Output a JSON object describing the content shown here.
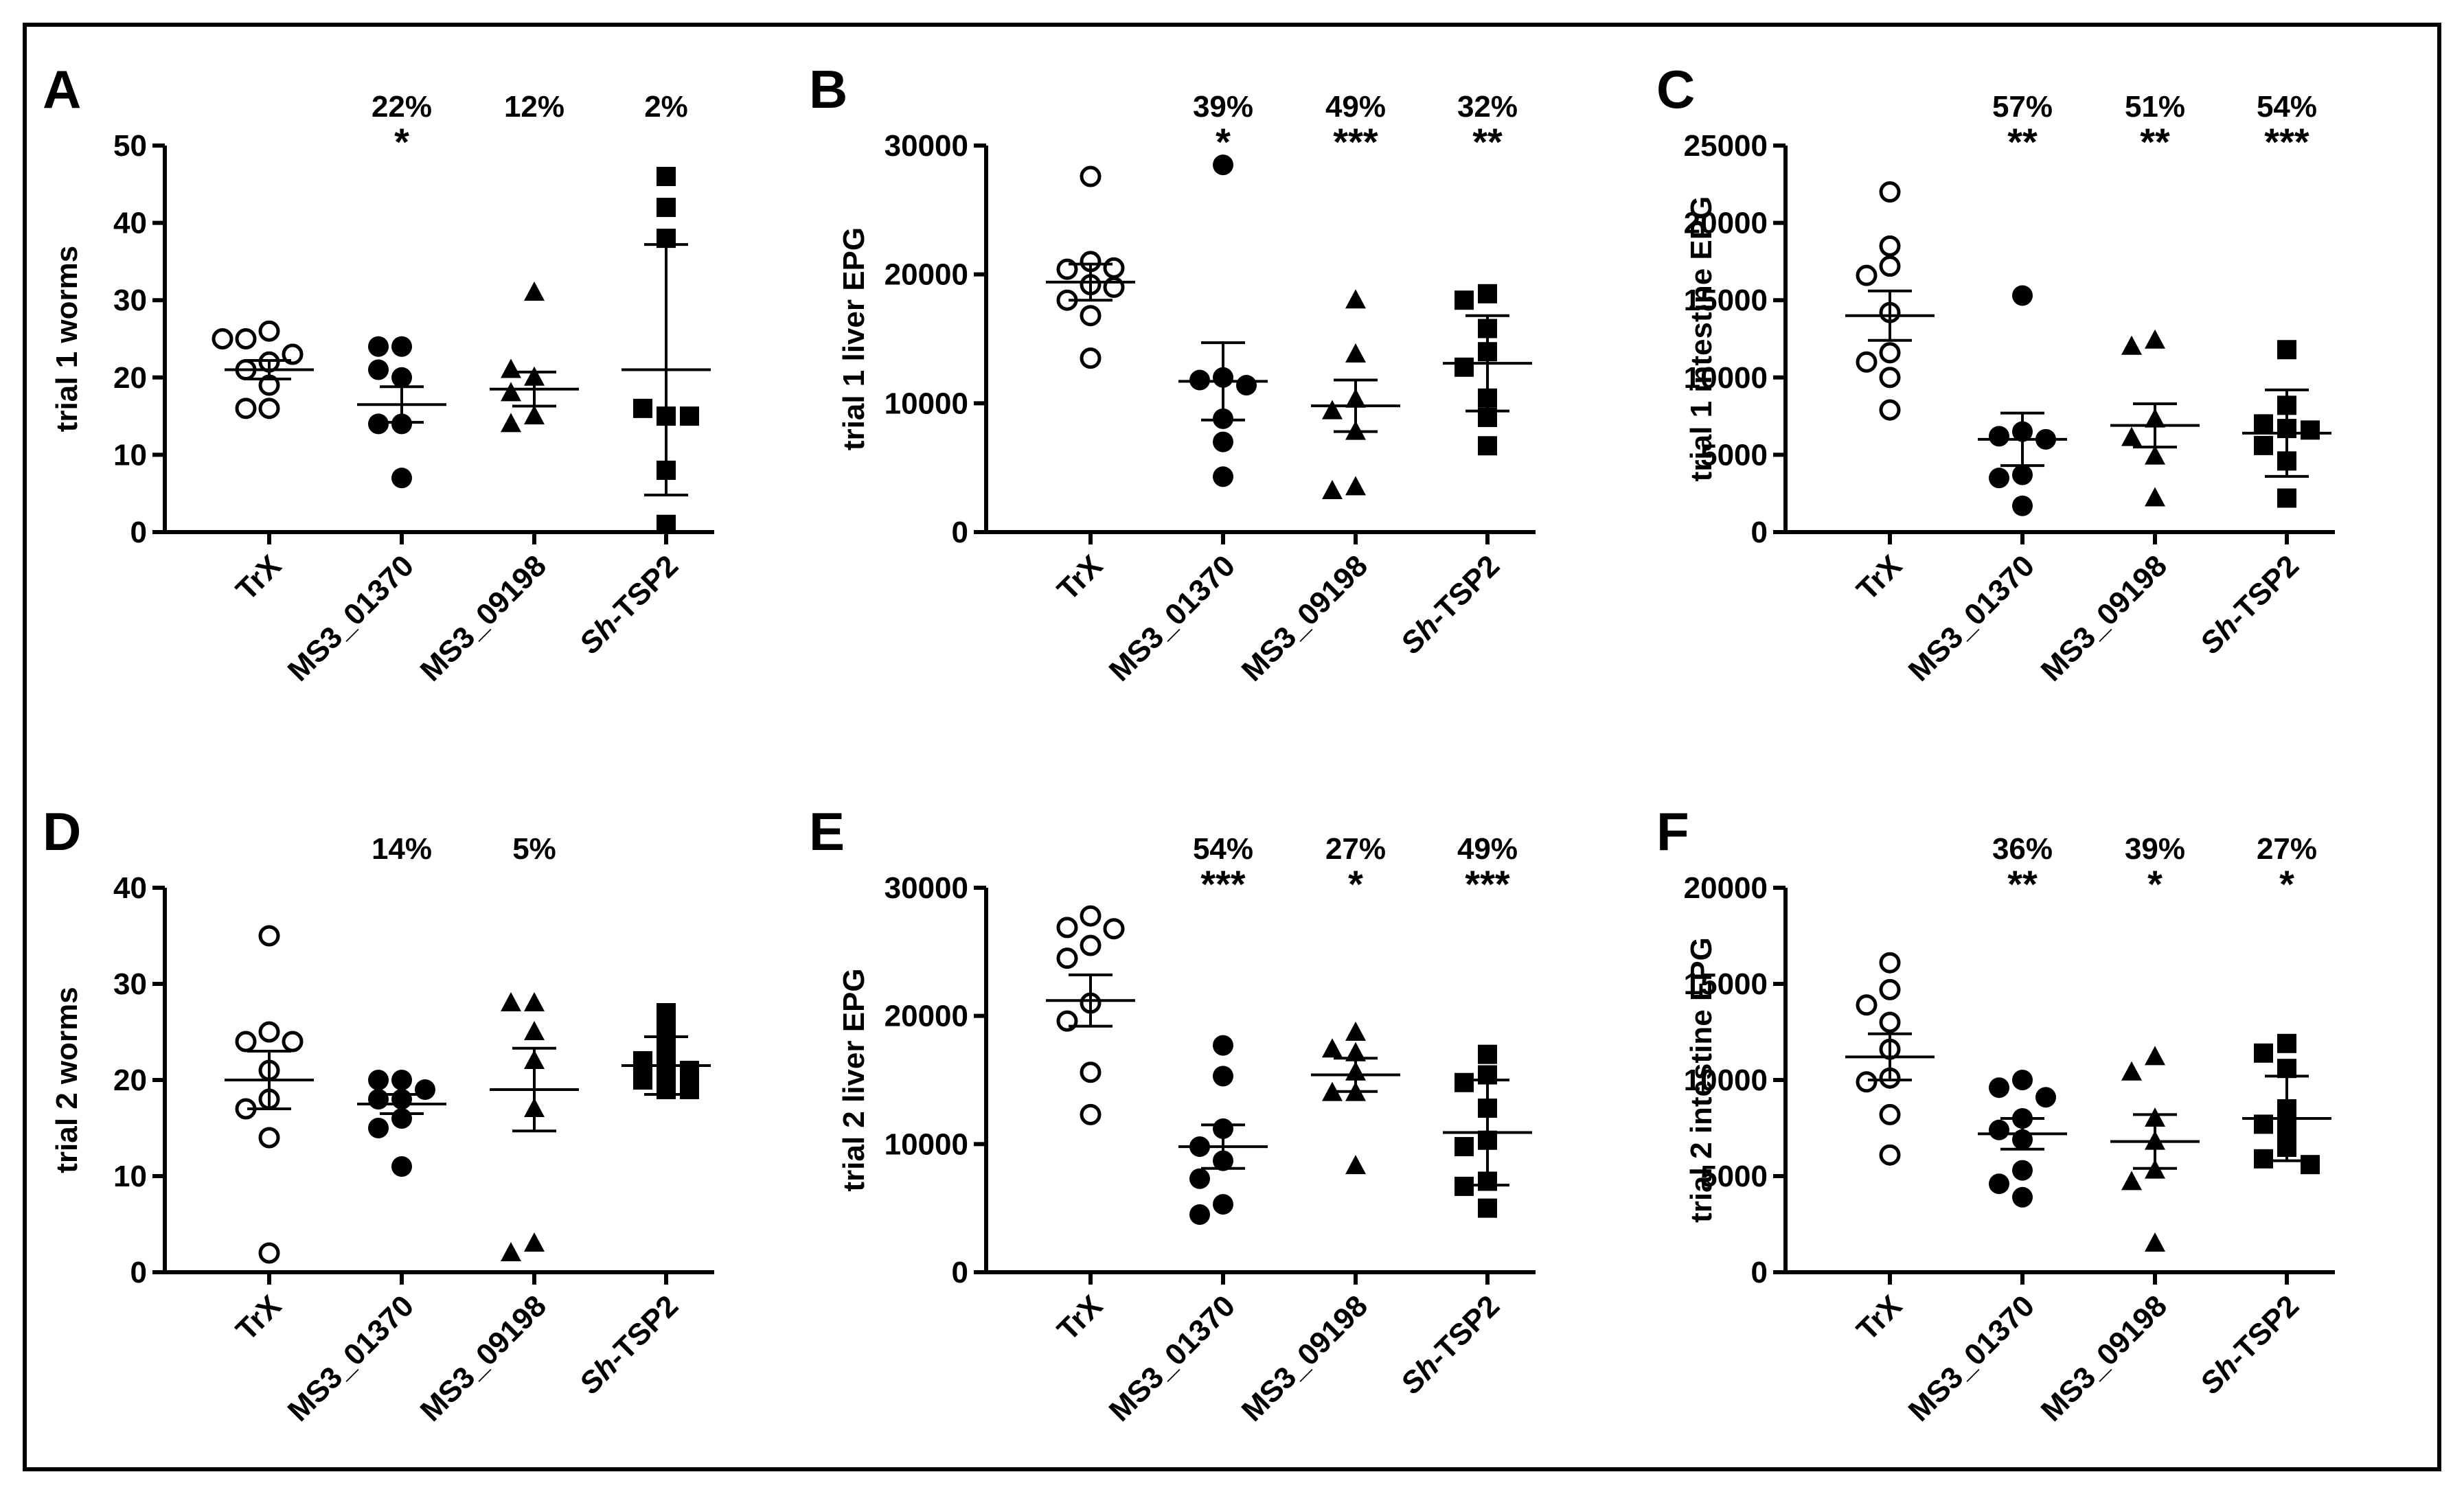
{
  "figure": {
    "categories": [
      {
        "key": "trx",
        "parts": [
          {
            "text": "TrX",
            "italic": false
          }
        ],
        "marker": "circle-open"
      },
      {
        "key": "ms3_01370",
        "parts": [
          {
            "text": "MS3_01370",
            "italic": false
          }
        ],
        "marker": "circle-filled"
      },
      {
        "key": "ms3_09198",
        "parts": [
          {
            "text": "MS3_09198",
            "italic": false
          }
        ],
        "marker": "triangle-filled"
      },
      {
        "key": "sh_tsp2",
        "parts": [
          {
            "text": "Sh",
            "italic": true
          },
          {
            "text": "-TSP2",
            "italic": false
          }
        ],
        "marker": "square-filled"
      }
    ]
  },
  "chart_data": [
    {
      "panel": "A",
      "type": "scatter",
      "ylabel": "trial 1 worms",
      "ylim": [
        0,
        50
      ],
      "yticks": [
        0,
        10,
        20,
        30,
        40,
        50
      ],
      "groups": [
        {
          "values": [
            26,
            22,
            25,
            23,
            25,
            21,
            19,
            16,
            16
          ],
          "mean": 21,
          "sem": 1.2,
          "pct": "",
          "sig": ""
        },
        {
          "values": [
            24,
            24,
            20,
            21,
            14,
            14,
            7
          ],
          "mean": 16.5,
          "sem": 2.3,
          "pct": "22%",
          "sig": "*"
        },
        {
          "values": [
            31,
            20,
            21,
            18,
            15,
            14
          ],
          "mean": 18.5,
          "sem": 2.2,
          "pct": "12%",
          "sig": ""
        },
        {
          "values": [
            46,
            42,
            38,
            15,
            16,
            15,
            8,
            1
          ],
          "mean": 21,
          "sem": 16.2,
          "pct": "2%",
          "sig": ""
        }
      ]
    },
    {
      "panel": "B",
      "type": "scatter",
      "ylabel": "trial 1 liver EPG",
      "ylim": [
        0,
        30000
      ],
      "yticks": [
        0,
        10000,
        20000,
        30000
      ],
      "groups": [
        {
          "values": [
            27600,
            21000,
            20400,
            20500,
            19200,
            19000,
            18000,
            16800,
            13500
          ],
          "mean": 19400,
          "sem": 1400,
          "pct": "",
          "sig": ""
        },
        {
          "values": [
            28500,
            12000,
            11800,
            11400,
            8800,
            7000,
            4300
          ],
          "mean": 11700,
          "sem": 3000,
          "pct": "39%",
          "sig": "*"
        },
        {
          "values": [
            18000,
            13800,
            10300,
            9400,
            7800,
            3500,
            3200
          ],
          "mean": 9800,
          "sem": 2000,
          "pct": "49%",
          "sig": "***"
        },
        {
          "values": [
            18500,
            18000,
            15800,
            14000,
            12800,
            10400,
            8900,
            6700
          ],
          "mean": 13100,
          "sem": 3700,
          "pct": "32%",
          "sig": "**"
        }
      ]
    },
    {
      "panel": "C",
      "type": "scatter",
      "ylabel": "trial 1 intestine EPG",
      "ylim": [
        0,
        25000
      ],
      "yticks": [
        0,
        5000,
        10000,
        15000,
        20000,
        25000
      ],
      "groups": [
        {
          "values": [
            22000,
            18500,
            17200,
            16600,
            14200,
            11600,
            11000,
            10000,
            7900
          ],
          "mean": 14000,
          "sem": 1600,
          "pct": "",
          "sig": ""
        },
        {
          "values": [
            15300,
            6500,
            6200,
            6000,
            3700,
            3500,
            1700
          ],
          "mean": 6000,
          "sem": 1700,
          "pct": "57%",
          "sig": "**"
        },
        {
          "values": [
            12400,
            12000,
            7300,
            6100,
            4900,
            2200
          ],
          "mean": 6900,
          "sem": 1400,
          "pct": "51%",
          "sig": "**"
        },
        {
          "values": [
            11800,
            8200,
            7000,
            6700,
            6600,
            5600,
            4600,
            2200
          ],
          "mean": 6400,
          "sem": 2800,
          "pct": "54%",
          "sig": "***"
        }
      ]
    },
    {
      "panel": "D",
      "type": "scatter",
      "ylabel": "trial 2 worms",
      "ylim": [
        0,
        40
      ],
      "yticks": [
        0,
        10,
        20,
        30,
        40
      ],
      "groups": [
        {
          "values": [
            35,
            25,
            24,
            24,
            21,
            18,
            17,
            14,
            2
          ],
          "mean": 20,
          "sem": 3,
          "pct": "",
          "sig": ""
        },
        {
          "values": [
            20,
            20,
            19,
            18,
            18,
            16,
            15,
            11
          ],
          "mean": 17.5,
          "sem": 1,
          "pct": "14%",
          "sig": ""
        },
        {
          "values": [
            28,
            28,
            25,
            22,
            17,
            3,
            2
          ],
          "mean": 19,
          "sem": 4.3,
          "pct": "5%",
          "sig": ""
        },
        {
          "values": [
            27,
            25,
            23,
            22,
            21,
            21,
            20,
            19,
            19
          ],
          "mean": 21.5,
          "sem": 3,
          "pct": "",
          "sig": ""
        }
      ]
    },
    {
      "panel": "E",
      "type": "scatter",
      "ylabel": "trial 2 liver EPG",
      "ylim": [
        0,
        30000
      ],
      "yticks": [
        0,
        10000,
        20000,
        30000
      ],
      "groups": [
        {
          "values": [
            27800,
            26900,
            26800,
            25500,
            24500,
            21000,
            19600,
            15600,
            12300
          ],
          "mean": 21200,
          "sem": 2000,
          "pct": "",
          "sig": ""
        },
        {
          "values": [
            17700,
            15300,
            11200,
            9800,
            8700,
            7300,
            5300,
            4500
          ],
          "mean": 9800,
          "sem": 1700,
          "pct": "54%",
          "sig": "***"
        },
        {
          "values": [
            18700,
            17400,
            17100,
            15600,
            14000,
            14000,
            8300
          ],
          "mean": 15400,
          "sem": 1300,
          "pct": "27%",
          "sig": "*"
        },
        {
          "values": [
            17000,
            15400,
            14800,
            12800,
            10300,
            9800,
            7100,
            6700,
            5000
          ],
          "mean": 10900,
          "sem": 4100,
          "pct": "49%",
          "sig": "***"
        }
      ]
    },
    {
      "panel": "F",
      "type": "scatter",
      "ylabel": "trial 2 intestine EPG",
      "ylim": [
        0,
        20000
      ],
      "yticks": [
        0,
        5000,
        10000,
        15000,
        20000
      ],
      "groups": [
        {
          "values": [
            16100,
            14700,
            13900,
            13000,
            11600,
            10100,
            9900,
            8200,
            6100
          ],
          "mean": 11200,
          "sem": 1200,
          "pct": "",
          "sig": ""
        },
        {
          "values": [
            10000,
            9600,
            9100,
            8000,
            7400,
            6900,
            5300,
            4600,
            3900
          ],
          "mean": 7200,
          "sem": 800,
          "pct": "36%",
          "sig": "**"
        },
        {
          "values": [
            11200,
            10400,
            8000,
            6800,
            5300,
            4700,
            1500
          ],
          "mean": 6800,
          "sem": 1400,
          "pct": "39%",
          "sig": "*"
        },
        {
          "values": [
            11900,
            11400,
            10600,
            8500,
            7700,
            7500,
            6500,
            5900,
            5600
          ],
          "mean": 8000,
          "sem": 2200,
          "pct": "27%",
          "sig": "*"
        }
      ]
    }
  ]
}
